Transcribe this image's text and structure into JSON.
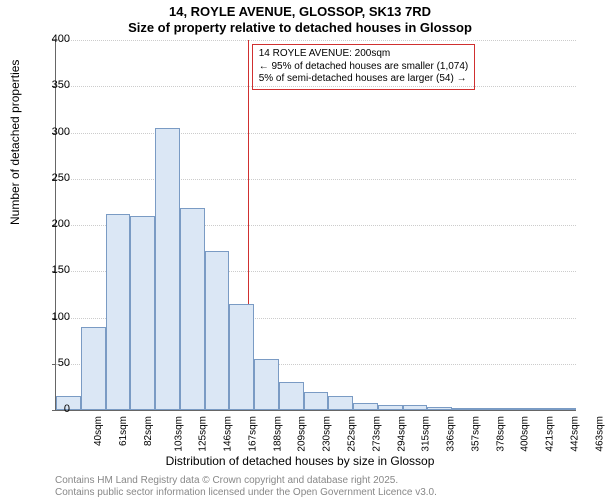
{
  "title_main": "14, ROYLE AVENUE, GLOSSOP, SK13 7RD",
  "title_sub": "Size of property relative to detached houses in Glossop",
  "y_label": "Number of detached properties",
  "x_label": "Distribution of detached houses by size in Glossop",
  "footer1": "Contains HM Land Registry data © Crown copyright and database right 2025.",
  "footer2": "Contains public sector information licensed under the Open Government Licence v3.0.",
  "annotation_line1": "14 ROYLE AVENUE: 200sqm",
  "annotation_line2": "← 95% of detached houses are smaller (1,074)",
  "annotation_line3": "5% of semi-detached houses are larger (54) →",
  "chart": {
    "type": "histogram",
    "ylim": [
      0,
      400
    ],
    "ytick_step": 50,
    "x_categories": [
      "40sqm",
      "61sqm",
      "82sqm",
      "103sqm",
      "125sqm",
      "146sqm",
      "167sqm",
      "188sqm",
      "209sqm",
      "230sqm",
      "252sqm",
      "273sqm",
      "294sqm",
      "315sqm",
      "336sqm",
      "357sqm",
      "378sqm",
      "400sqm",
      "421sqm",
      "442sqm",
      "463sqm"
    ],
    "values": [
      15,
      90,
      212,
      210,
      305,
      218,
      172,
      115,
      55,
      30,
      20,
      15,
      8,
      5,
      5,
      3,
      2,
      2,
      2,
      2,
      2
    ],
    "marker_value": 200,
    "x_min": 40,
    "x_max": 474,
    "bar_fill": "#dbe7f5",
    "bar_stroke": "#7a9bc4",
    "grid_color": "#cccccc",
    "marker_color": "#d03030",
    "background": "#ffffff",
    "title_fontsize": 13,
    "label_fontsize": 12,
    "tick_fontsize": 11,
    "footer_fontsize": 10
  }
}
